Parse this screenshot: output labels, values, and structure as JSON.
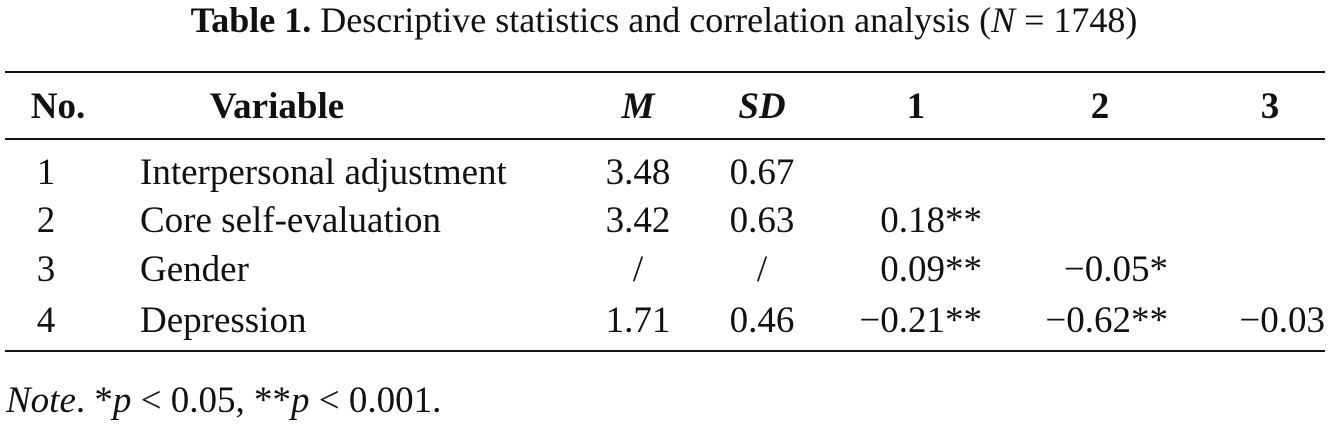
{
  "caption": {
    "label": "Table 1.",
    "text": [
      "Descriptive statistics and correlation analysis (",
      "N",
      " = 1748)"
    ]
  },
  "table": {
    "headers": [
      "No.",
      "Variable",
      "M",
      "SD",
      "1",
      "2",
      "3"
    ],
    "rows": [
      [
        "1",
        "Interpersonal adjustment",
        "3.48",
        "0.67"
      ],
      [
        "2",
        "Core self-evaluation",
        "3.42",
        "0.63",
        "0.18**"
      ],
      [
        "3",
        "Gender",
        "/",
        "/",
        "0.09**",
        "−0.05*"
      ],
      [
        "4",
        "Depression",
        "1.71",
        "0.46",
        "−0.21**",
        "−0.62**",
        "−0.03"
      ]
    ]
  },
  "note": [
    "Note",
    ". *",
    "p",
    " < 0.05, **",
    "p",
    " < 0.001."
  ]
}
